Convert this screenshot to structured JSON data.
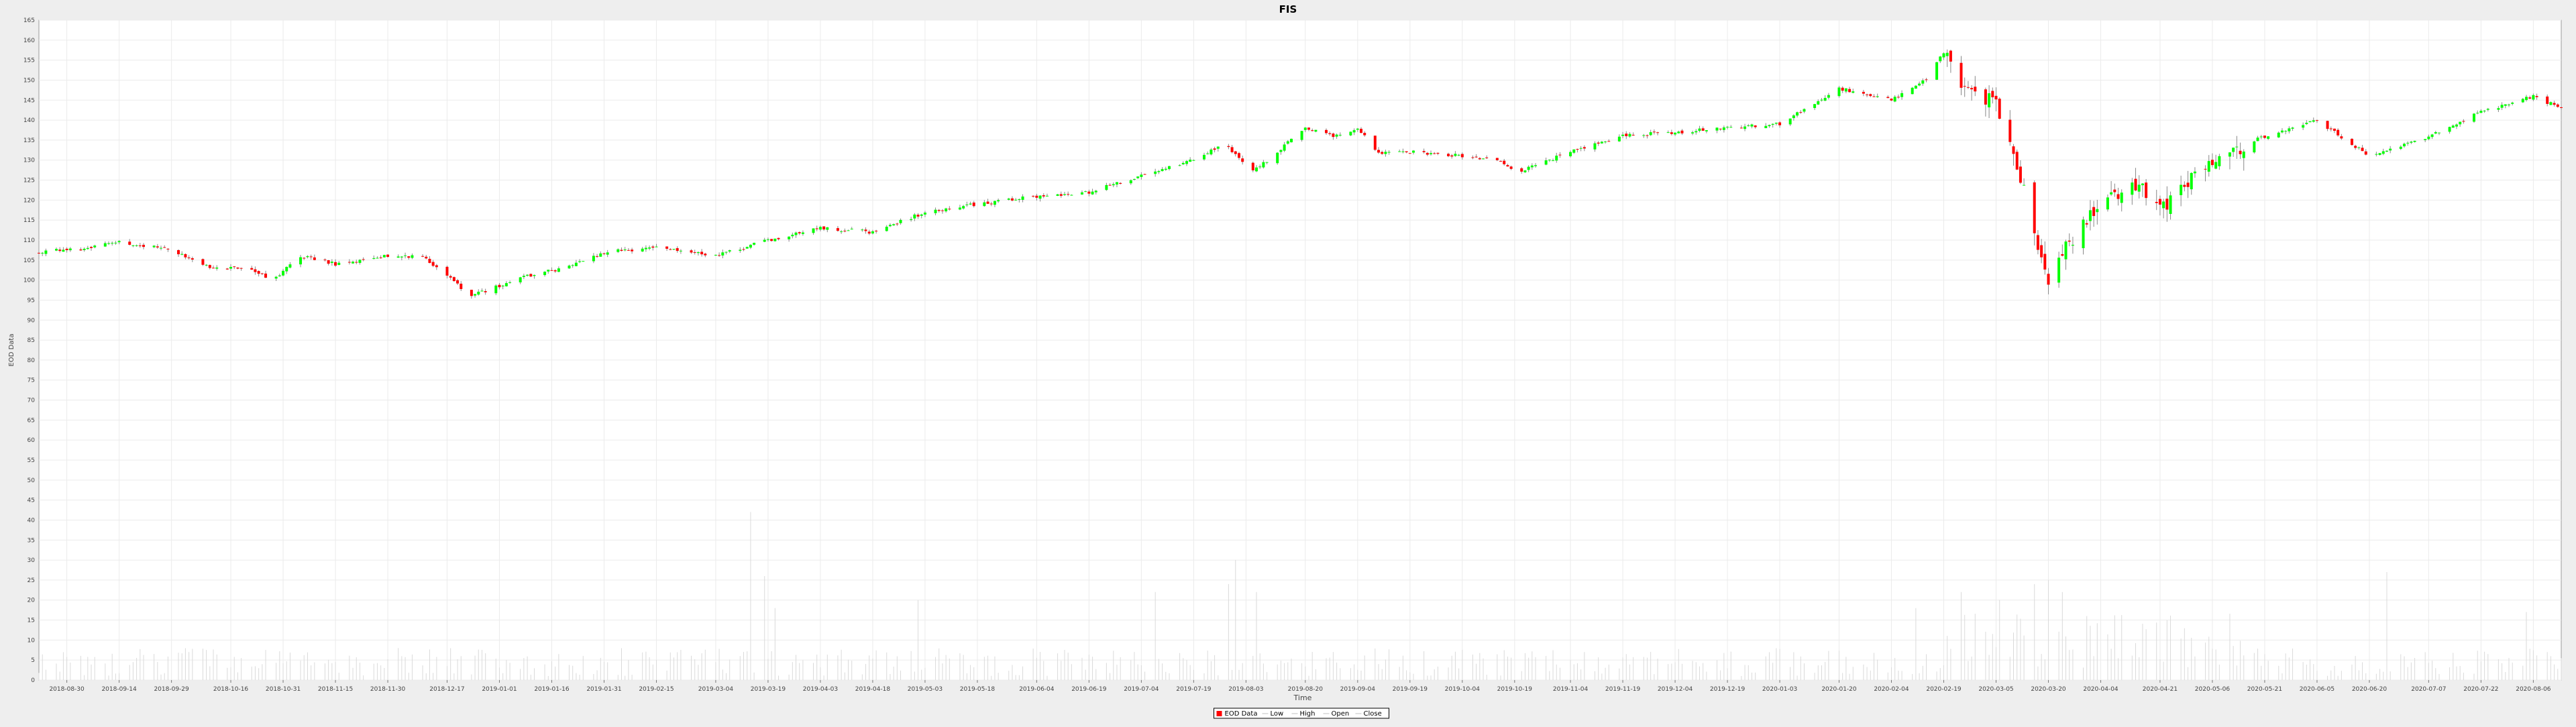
{
  "chart_data": {
    "type": "candlestick",
    "title": "FIS",
    "xlabel": "Time",
    "ylabel": "EOD Data",
    "ylim": [
      0,
      165
    ],
    "y_ticks": [
      0,
      5,
      10,
      15,
      20,
      25,
      30,
      35,
      40,
      45,
      50,
      55,
      60,
      65,
      70,
      75,
      80,
      85,
      90,
      95,
      100,
      105,
      110,
      115,
      120,
      125,
      130,
      135,
      140,
      145,
      150,
      155,
      160,
      165
    ],
    "xlim": [
      "2018-08-22",
      "2020-08-14"
    ],
    "x_ticks": [
      "2018-08-30",
      "2018-09-14",
      "2018-09-29",
      "2018-10-16",
      "2018-10-31",
      "2018-11-15",
      "2018-11-30",
      "2018-12-17",
      "2019-01-01",
      "2019-01-16",
      "2019-01-31",
      "2019-02-15",
      "2019-03-04",
      "2019-03-19",
      "2019-04-03",
      "2019-04-18",
      "2019-05-03",
      "2019-05-18",
      "2019-06-04",
      "2019-06-19",
      "2019-07-04",
      "2019-07-19",
      "2019-08-03",
      "2019-08-20",
      "2019-09-04",
      "2019-09-19",
      "2019-10-04",
      "2019-10-19",
      "2019-11-04",
      "2019-11-19",
      "2019-12-04",
      "2019-12-19",
      "2020-01-03",
      "2020-01-20",
      "2020-02-04",
      "2020-02-19",
      "2020-03-05",
      "2020-03-20",
      "2020-04-04",
      "2020-04-21",
      "2020-05-06",
      "2020-05-21",
      "2020-06-05",
      "2020-06-20",
      "2020-07-07",
      "2020-07-22",
      "2020-08-06"
    ],
    "close_path": [
      [
        "2018-08-22",
        107
      ],
      [
        "2018-09-05",
        108
      ],
      [
        "2018-09-14",
        109.5
      ],
      [
        "2018-09-29",
        107.5
      ],
      [
        "2018-10-10",
        103
      ],
      [
        "2018-10-20",
        103
      ],
      [
        "2018-10-28",
        100
      ],
      [
        "2018-11-05",
        106
      ],
      [
        "2018-11-15",
        104
      ],
      [
        "2018-11-30",
        106
      ],
      [
        "2018-12-10",
        106
      ],
      [
        "2018-12-24",
        96
      ],
      [
        "2019-01-08",
        101
      ],
      [
        "2019-01-20",
        103
      ],
      [
        "2019-01-31",
        107
      ],
      [
        "2019-02-15",
        108
      ],
      [
        "2019-03-04",
        106
      ],
      [
        "2019-03-19",
        110
      ],
      [
        "2019-04-03",
        113
      ],
      [
        "2019-04-18",
        112
      ],
      [
        "2019-05-03",
        117
      ],
      [
        "2019-05-18",
        119
      ],
      [
        "2019-06-04",
        121
      ],
      [
        "2019-06-19",
        122
      ],
      [
        "2019-07-04",
        126
      ],
      [
        "2019-07-19",
        130
      ],
      [
        "2019-07-28",
        134
      ],
      [
        "2019-08-05",
        127
      ],
      [
        "2019-08-20",
        138
      ],
      [
        "2019-08-28",
        136
      ],
      [
        "2019-09-04",
        138
      ],
      [
        "2019-09-10",
        132
      ],
      [
        "2019-09-19",
        132
      ],
      [
        "2019-10-04",
        131
      ],
      [
        "2019-10-15",
        130
      ],
      [
        "2019-10-20",
        127
      ],
      [
        "2019-11-04",
        132
      ],
      [
        "2019-11-19",
        136
      ],
      [
        "2019-12-04",
        137
      ],
      [
        "2019-12-19",
        138
      ],
      [
        "2020-01-03",
        139
      ],
      [
        "2020-01-20",
        148
      ],
      [
        "2020-02-04",
        145
      ],
      [
        "2020-02-14",
        150
      ],
      [
        "2020-02-19",
        157
      ],
      [
        "2020-02-24",
        150
      ],
      [
        "2020-03-05",
        144
      ],
      [
        "2020-03-12",
        125
      ],
      [
        "2020-03-20",
        100
      ],
      [
        "2020-03-25",
        108
      ],
      [
        "2020-04-04",
        119
      ],
      [
        "2020-04-14",
        124
      ],
      [
        "2020-04-21",
        118
      ],
      [
        "2020-05-06",
        130
      ],
      [
        "2020-05-21",
        136
      ],
      [
        "2020-06-05",
        140
      ],
      [
        "2020-06-20",
        131
      ],
      [
        "2020-07-07",
        136
      ],
      [
        "2020-07-22",
        142
      ],
      [
        "2020-08-06",
        146
      ],
      [
        "2020-08-14",
        143
      ]
    ],
    "volume_spikes": [
      [
        "2019-03-14",
        42
      ],
      [
        "2019-03-18",
        26
      ],
      [
        "2019-03-21",
        18
      ],
      [
        "2019-05-01",
        20
      ],
      [
        "2019-07-31",
        30
      ],
      [
        "2019-07-29",
        24
      ],
      [
        "2019-08-06",
        22
      ],
      [
        "2019-07-08",
        22
      ],
      [
        "2020-02-11",
        18
      ],
      [
        "2020-02-24",
        22
      ],
      [
        "2020-03-20",
        25
      ],
      [
        "2020-03-24",
        22
      ],
      [
        "2020-06-25",
        27
      ],
      [
        "2020-03-06",
        20
      ],
      [
        "2020-03-16",
        24
      ],
      [
        "2020-08-04",
        17
      ]
    ],
    "legend": {
      "placement": "bottom-center",
      "entries": [
        {
          "name": "EOD Data",
          "color": "#ff0000"
        },
        {
          "name": "Low",
          "color": "#c0c0c0"
        },
        {
          "name": "High",
          "color": "#c0c0c0"
        },
        {
          "name": "Open",
          "color": "#c0c0c0"
        },
        {
          "name": "Close",
          "color": "#c0c0c0"
        }
      ]
    },
    "colors": {
      "up": "#00ff00",
      "down": "#ff0000",
      "wick": "#888888",
      "grid": "#ebebeb",
      "plot_bg": "#ffffff"
    },
    "grid": true
  }
}
